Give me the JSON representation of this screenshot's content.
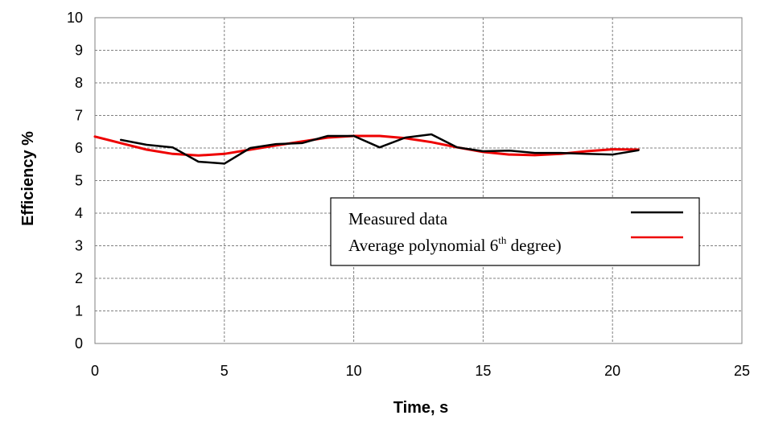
{
  "chart_data": {
    "type": "line",
    "title": "",
    "xlabel": "Time, s",
    "ylabel": "Efficiency %",
    "xlim": [
      0,
      25
    ],
    "ylim": [
      0,
      10
    ],
    "xticks": [
      "0",
      "5",
      "10",
      "15",
      "20",
      "25"
    ],
    "yticks": [
      "0",
      "1",
      "2",
      "3",
      "4",
      "5",
      "6",
      "7",
      "8",
      "9",
      "10"
    ],
    "grid": true,
    "legend_position": "center-right",
    "series": [
      {
        "name": "Measured data",
        "color": "#000000",
        "x": [
          1,
          2,
          3,
          4,
          5,
          6,
          7,
          8,
          9,
          10,
          11,
          12,
          13,
          14,
          15,
          16,
          17,
          18,
          19,
          20,
          21
        ],
        "y": [
          6.25,
          6.1,
          6.02,
          5.58,
          5.52,
          6.0,
          6.12,
          6.15,
          6.37,
          6.37,
          6.02,
          6.32,
          6.42,
          6.02,
          5.9,
          5.92,
          5.85,
          5.85,
          5.82,
          5.8,
          5.93
        ]
      },
      {
        "name": "Average polynomial 6",
        "name_sup": "th",
        "name_suffix": " degree)",
        "color": "#ee0000",
        "x": [
          0,
          1,
          2,
          3,
          4,
          5,
          6,
          7,
          8,
          9,
          10,
          11,
          12,
          13,
          14,
          15,
          16,
          17,
          18,
          19,
          20,
          21
        ],
        "y": [
          6.35,
          6.15,
          5.95,
          5.82,
          5.77,
          5.82,
          5.95,
          6.08,
          6.2,
          6.32,
          6.37,
          6.37,
          6.3,
          6.18,
          6.02,
          5.88,
          5.8,
          5.78,
          5.82,
          5.9,
          5.96,
          5.95
        ]
      }
    ]
  }
}
